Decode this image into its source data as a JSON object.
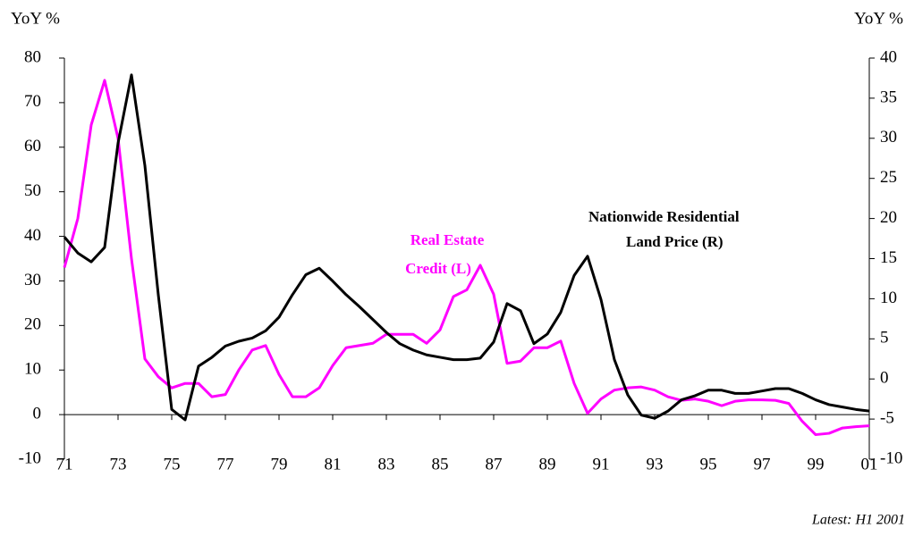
{
  "chart_data": {
    "type": "line",
    "y_label": "YoY %",
    "y2_label": "YoY %",
    "x": [
      1971,
      1971.5,
      1972,
      1972.5,
      1973,
      1973.5,
      1974,
      1974.5,
      1975,
      1975.5,
      1976,
      1976.5,
      1977,
      1977.5,
      1978,
      1978.5,
      1979,
      1979.5,
      1980,
      1980.5,
      1981,
      1981.5,
      1982,
      1982.5,
      1983,
      1983.5,
      1984,
      1984.5,
      1985,
      1985.5,
      1986,
      1986.5,
      1987,
      1987.5,
      1988,
      1988.5,
      1989,
      1989.5,
      1990,
      1990.5,
      1991,
      1991.5,
      1992,
      1992.5,
      1993,
      1993.5,
      1994,
      1994.5,
      1995,
      1995.5,
      1996,
      1996.5,
      1997,
      1997.5,
      1998,
      1998.5,
      1999,
      1999.5,
      2000,
      2000.5,
      2001
    ],
    "series": [
      {
        "name": "Real Estate Credit (L)",
        "color": "#ff00ff",
        "axis": "y",
        "values": [
          33,
          44,
          65,
          75,
          62,
          35,
          12.5,
          8.5,
          6,
          7,
          7,
          4,
          4.5,
          10,
          14.5,
          15.5,
          9,
          4,
          4,
          6,
          11,
          15,
          15.5,
          16,
          18,
          18,
          18,
          16,
          19,
          26.5,
          28,
          33.5,
          27,
          11.5,
          12,
          15,
          15,
          16.5,
          7,
          0.3,
          3.5,
          5.5,
          6,
          6.2,
          5.5,
          4,
          3.2,
          3.5,
          3,
          2,
          3,
          3.3,
          3.3,
          3.2,
          2.5,
          -1.5,
          -4.5,
          -4.2,
          -3,
          -2.7,
          -2.5
        ]
      },
      {
        "name": "Nationwide Residential Land Price (R)",
        "color": "#000000",
        "axis": "y2",
        "values": [
          17.7,
          15.7,
          14.6,
          16.4,
          29.4,
          37.9,
          26.6,
          10.5,
          -3.8,
          -5.1,
          1.6,
          2.7,
          4.1,
          4.7,
          5.1,
          6,
          7.7,
          10.5,
          13,
          13.8,
          12.2,
          10.5,
          9,
          7.4,
          5.8,
          4.4,
          3.6,
          3,
          2.7,
          2.4,
          2.4,
          2.6,
          4.6,
          9.4,
          8.5,
          4.4,
          5.6,
          8.3,
          12.9,
          15.3,
          9.9,
          2.4,
          -2,
          -4.5,
          -4.9,
          -4,
          -2.6,
          -2.1,
          -1.4,
          -1.4,
          -1.8,
          -1.8,
          -1.5,
          -1.2,
          -1.2,
          -1.8,
          -2.6,
          -3.2,
          -3.5,
          -3.8,
          -4
        ]
      }
    ],
    "xlim": [
      1971,
      2001
    ],
    "xticks": [
      {
        "value": 1971,
        "label": "71"
      },
      {
        "value": 1973,
        "label": "73"
      },
      {
        "value": 1975,
        "label": "75"
      },
      {
        "value": 1977,
        "label": "77"
      },
      {
        "value": 1979,
        "label": "79"
      },
      {
        "value": 1981,
        "label": "81"
      },
      {
        "value": 1983,
        "label": "83"
      },
      {
        "value": 1985,
        "label": "85"
      },
      {
        "value": 1987,
        "label": "87"
      },
      {
        "value": 1989,
        "label": "89"
      },
      {
        "value": 1991,
        "label": "91"
      },
      {
        "value": 1993,
        "label": "93"
      },
      {
        "value": 1995,
        "label": "95"
      },
      {
        "value": 1997,
        "label": "97"
      },
      {
        "value": 1999,
        "label": "99"
      },
      {
        "value": 2001,
        "label": "01"
      }
    ],
    "ylim": [
      -10,
      80
    ],
    "yticks": [
      -10,
      0,
      10,
      20,
      30,
      40,
      50,
      60,
      70,
      80
    ],
    "y2lim": [
      -10,
      40
    ],
    "y2ticks": [
      -10,
      -5,
      0,
      5,
      10,
      15,
      20,
      25,
      30,
      35,
      40
    ],
    "annotations": [
      "Real Estate",
      "Credit (L)",
      "Nationwide Residential",
      "Land Price (R)"
    ],
    "note": "Latest: H1 2001"
  }
}
